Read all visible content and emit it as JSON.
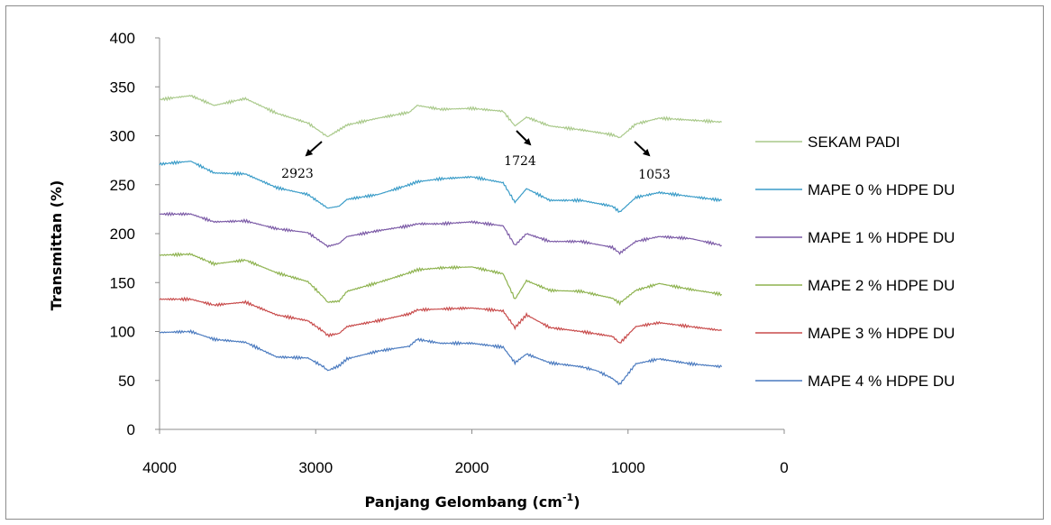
{
  "chart_data": {
    "type": "line",
    "title": "",
    "xlabel": "Panjang Gelombang (cm",
    "xlabel_sup": "-1",
    "xlabel_end": ")",
    "ylabel": "Transmittan  (%)",
    "xlim": [
      4000,
      0
    ],
    "ylim": [
      0,
      400
    ],
    "x_ticks": [
      4000,
      3000,
      2000,
      1000,
      0
    ],
    "y_ticks": [
      0,
      50,
      100,
      150,
      200,
      250,
      300,
      350,
      400
    ],
    "x_tick_labels": [
      "4000",
      "3000",
      "2000",
      "1000",
      "0"
    ],
    "y_tick_labels": [
      "0",
      "50",
      "100",
      "150",
      "200",
      "250",
      "300",
      "350",
      "400"
    ],
    "grid": false,
    "legend_position": "right",
    "annotations": [
      {
        "text": "2923",
        "x": 2923
      },
      {
        "text": "1724",
        "x": 1724
      },
      {
        "text": "1053",
        "x": 1053
      }
    ],
    "series": [
      {
        "name": "SEKAM PADI",
        "color": "#a9c98a",
        "points": [
          [
            4000,
            337
          ],
          [
            3800,
            341
          ],
          [
            3650,
            331
          ],
          [
            3450,
            338
          ],
          [
            3250,
            323
          ],
          [
            3050,
            313
          ],
          [
            2950,
            302
          ],
          [
            2923,
            299
          ],
          [
            2850,
            306
          ],
          [
            2800,
            311
          ],
          [
            2600,
            318
          ],
          [
            2400,
            324
          ],
          [
            2350,
            331
          ],
          [
            2200,
            327
          ],
          [
            2000,
            328
          ],
          [
            1800,
            325
          ],
          [
            1724,
            310
          ],
          [
            1650,
            319
          ],
          [
            1500,
            310
          ],
          [
            1300,
            306
          ],
          [
            1100,
            301
          ],
          [
            1053,
            298
          ],
          [
            950,
            312
          ],
          [
            800,
            318
          ],
          [
            600,
            316
          ],
          [
            400,
            314
          ]
        ]
      },
      {
        "name": "MAPE 0 % HDPE DU",
        "color": "#3a9cc8",
        "points": [
          [
            4000,
            271
          ],
          [
            3800,
            274
          ],
          [
            3650,
            262
          ],
          [
            3450,
            261
          ],
          [
            3250,
            247
          ],
          [
            3050,
            240
          ],
          [
            2950,
            229
          ],
          [
            2923,
            226
          ],
          [
            2850,
            228
          ],
          [
            2800,
            235
          ],
          [
            2600,
            240
          ],
          [
            2400,
            250
          ],
          [
            2350,
            253
          ],
          [
            2200,
            256
          ],
          [
            2000,
            258
          ],
          [
            1800,
            252
          ],
          [
            1724,
            232
          ],
          [
            1650,
            246
          ],
          [
            1500,
            234
          ],
          [
            1300,
            234
          ],
          [
            1100,
            228
          ],
          [
            1053,
            222
          ],
          [
            950,
            237
          ],
          [
            800,
            242
          ],
          [
            600,
            238
          ],
          [
            400,
            234
          ]
        ]
      },
      {
        "name": "MAPE 1 % HDPE DU",
        "color": "#7b5aa6",
        "points": [
          [
            4000,
            220
          ],
          [
            3800,
            220
          ],
          [
            3650,
            212
          ],
          [
            3450,
            213
          ],
          [
            3250,
            205
          ],
          [
            3050,
            201
          ],
          [
            2950,
            190
          ],
          [
            2923,
            187
          ],
          [
            2850,
            190
          ],
          [
            2800,
            197
          ],
          [
            2600,
            203
          ],
          [
            2400,
            208
          ],
          [
            2350,
            210
          ],
          [
            2200,
            210
          ],
          [
            2000,
            212
          ],
          [
            1800,
            208
          ],
          [
            1724,
            188
          ],
          [
            1650,
            200
          ],
          [
            1500,
            192
          ],
          [
            1300,
            192
          ],
          [
            1100,
            186
          ],
          [
            1053,
            180
          ],
          [
            950,
            192
          ],
          [
            800,
            197
          ],
          [
            600,
            195
          ],
          [
            400,
            188
          ]
        ]
      },
      {
        "name": "MAPE 2 % HDPE DU",
        "color": "#8db24e",
        "points": [
          [
            4000,
            178
          ],
          [
            3800,
            179
          ],
          [
            3650,
            169
          ],
          [
            3450,
            173
          ],
          [
            3250,
            160
          ],
          [
            3050,
            151
          ],
          [
            2950,
            135
          ],
          [
            2923,
            130
          ],
          [
            2850,
            131
          ],
          [
            2800,
            141
          ],
          [
            2600,
            150
          ],
          [
            2400,
            160
          ],
          [
            2350,
            163
          ],
          [
            2200,
            165
          ],
          [
            2000,
            166
          ],
          [
            1800,
            159
          ],
          [
            1724,
            133
          ],
          [
            1650,
            152
          ],
          [
            1500,
            142
          ],
          [
            1300,
            141
          ],
          [
            1100,
            134
          ],
          [
            1053,
            129
          ],
          [
            950,
            142
          ],
          [
            800,
            149
          ],
          [
            600,
            143
          ],
          [
            400,
            138
          ]
        ]
      },
      {
        "name": "MAPE 3 % HDPE DU",
        "color": "#c84b4b",
        "points": [
          [
            4000,
            133
          ],
          [
            3800,
            133
          ],
          [
            3650,
            127
          ],
          [
            3450,
            130
          ],
          [
            3250,
            117
          ],
          [
            3050,
            111
          ],
          [
            2950,
            100
          ],
          [
            2923,
            96
          ],
          [
            2850,
            98
          ],
          [
            2800,
            105
          ],
          [
            2600,
            111
          ],
          [
            2400,
            118
          ],
          [
            2350,
            122
          ],
          [
            2200,
            123
          ],
          [
            2000,
            124
          ],
          [
            1800,
            121
          ],
          [
            1724,
            104
          ],
          [
            1650,
            117
          ],
          [
            1500,
            104
          ],
          [
            1300,
            100
          ],
          [
            1100,
            95
          ],
          [
            1053,
            88
          ],
          [
            950,
            105
          ],
          [
            800,
            109
          ],
          [
            600,
            105
          ],
          [
            400,
            101
          ]
        ]
      },
      {
        "name": "MAPE 4 % HDPE DU",
        "color": "#4a7abf",
        "points": [
          [
            4000,
            99
          ],
          [
            3800,
            100
          ],
          [
            3650,
            92
          ],
          [
            3450,
            89
          ],
          [
            3250,
            74
          ],
          [
            3050,
            73
          ],
          [
            2950,
            64
          ],
          [
            2923,
            60
          ],
          [
            2850,
            65
          ],
          [
            2800,
            72
          ],
          [
            2600,
            80
          ],
          [
            2400,
            85
          ],
          [
            2350,
            92
          ],
          [
            2200,
            88
          ],
          [
            2000,
            88
          ],
          [
            1800,
            84
          ],
          [
            1724,
            68
          ],
          [
            1650,
            77
          ],
          [
            1500,
            68
          ],
          [
            1300,
            64
          ],
          [
            1200,
            60
          ],
          [
            1100,
            52
          ],
          [
            1053,
            46
          ],
          [
            950,
            67
          ],
          [
            800,
            72
          ],
          [
            600,
            67
          ],
          [
            400,
            64
          ]
        ]
      }
    ]
  }
}
